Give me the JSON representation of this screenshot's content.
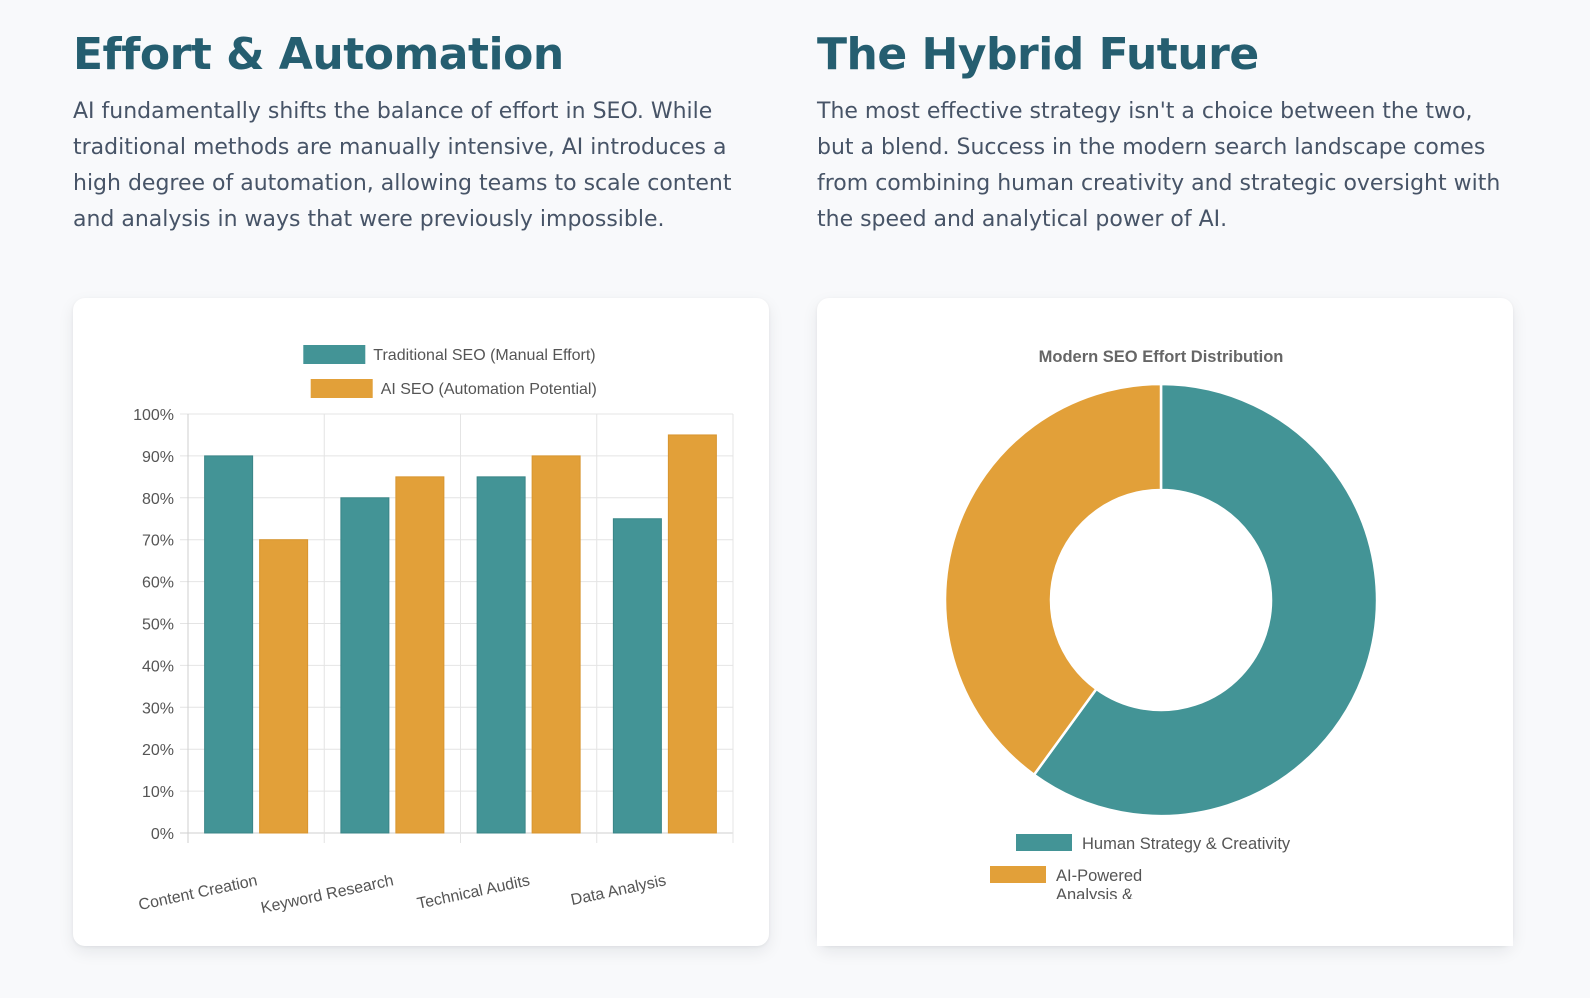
{
  "left": {
    "title": "Effort & Automation",
    "description": "AI fundamentally shifts the balance of effort in SEO. While traditional methods are manually intensive, AI introduces a high degree of automation, allowing teams to scale content and analysis in ways that were previously impossible."
  },
  "right": {
    "title": "The Hybrid Future",
    "description": "The most effective strategy isn't a choice between the two, but a blend. Success in the modern search landscape comes from combining human creativity and strategic oversight with the speed and analytical power of AI."
  },
  "colors": {
    "teal": "#439496",
    "amber": "#e2a039"
  },
  "chart_data": [
    {
      "type": "bar",
      "categories": [
        "Content Creation",
        "Keyword Research",
        "Technical Audits",
        "Data Analysis"
      ],
      "series": [
        {
          "name": "Traditional SEO (Manual Effort)",
          "values": [
            90,
            80,
            85,
            75
          ]
        },
        {
          "name": "AI SEO (Automation Potential)",
          "values": [
            70,
            85,
            90,
            95
          ]
        }
      ],
      "yticks": [
        "0%",
        "10%",
        "20%",
        "30%",
        "40%",
        "50%",
        "60%",
        "70%",
        "80%",
        "90%",
        "100%"
      ],
      "ylim": [
        0,
        100
      ],
      "title": "",
      "xlabel": "",
      "ylabel": "",
      "legend": "top"
    },
    {
      "type": "pie",
      "title": "Modern SEO Effort Distribution",
      "labels": [
        "Human Strategy & Creativity",
        "AI-Powered Analysis &"
      ],
      "legend_lines": [
        [
          "Human Strategy & Creativity"
        ],
        [
          "AI-Powered",
          "Analysis &"
        ]
      ],
      "values": [
        60,
        40
      ],
      "legend": "bottom"
    }
  ]
}
